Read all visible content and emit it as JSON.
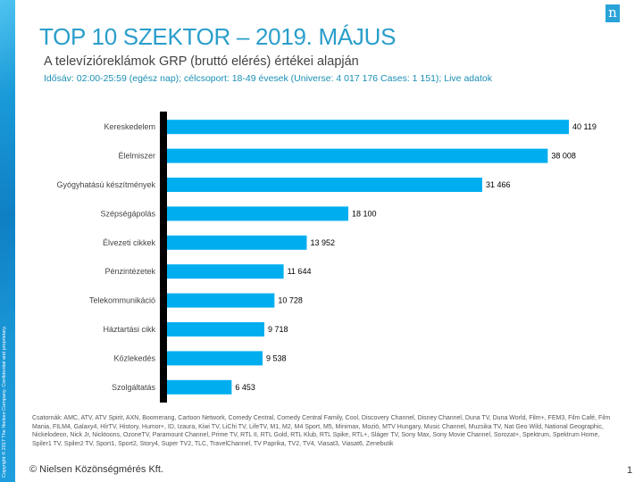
{
  "header": {
    "title": "TOP 10 SZEKTOR – 2019. MÁJUS",
    "subtitle": "A televízióreklámok GRP (bruttó elérés) értékei alapján",
    "info": "Idősáv: 02:00-25:59 (egész nap); célcsoport: 18-49 évesek (Universe: 4 017 176 Cases: 1 151); Live adatok",
    "logo_text": "n"
  },
  "side_copyright": "Copyright © 2017 The Nielsen Company. Confidential and proprietary.",
  "chart_data": {
    "type": "bar",
    "orientation": "horizontal",
    "categories": [
      "Kereskedelem",
      "Élelmiszer",
      "Gyógyhatású készítmények",
      "Szépségápolás",
      "Élvezeti cikkek",
      "Pénzintézetek",
      "Telekommunikáció",
      "Háztartási cikk",
      "Közlekedés",
      "Szolgáltatás"
    ],
    "values": [
      40119,
      38008,
      31466,
      18100,
      13952,
      11644,
      10728,
      9718,
      9538,
      6453
    ],
    "value_labels": [
      "40 119",
      "38 008",
      "31 466",
      "18 100",
      "13 952",
      "11 644",
      "10 728",
      "9 718",
      "9 538",
      "6 453"
    ],
    "bar_color": "#00aeef",
    "axis_color": "#000000",
    "grid": false
  },
  "footnote": "Csatornák: AMC, ATV, ATV Spirit, AXN, Boomerang, Cartoon Network, Comedy Central, Comedy Central Family, Cool, Discovery Channel, Disney Channel, Duna TV, Duna World, Film+, FEM3, Film Café, Film Mania, FILM4, Galaxy4, HírTV, History, Humor+, ID, Izaura, Kiwi TV, LiChi TV, LifeTV, M1, M2, M4 Sport, M5, Minimax, Moziö, MTV Hungary, Music Channel, Muzsika TV, Nat Geo Wild, National Geographic, Nickelodeon, Nick Jr, Nicktoons, OzoneTV, Paramount Channel, Prime TV, RTL II, RTL Gold, RTL Klub, RTL Spike, RTL+, Sláger TV, Sony Max, Sony Movie Channel, Sorozat+, Spektrum, Spektrum Home, Spiler1 TV, Spiler2 TV, Sport1, Sport2, Story4, Super TV2, TLC, TravelChannel, TV Paprika, TV2, TV4, Viasat3, Viasat6, Zenebutik",
  "footer": {
    "copyright": "© Nielsen Közönségmérés Kft.",
    "page_number": "1"
  }
}
